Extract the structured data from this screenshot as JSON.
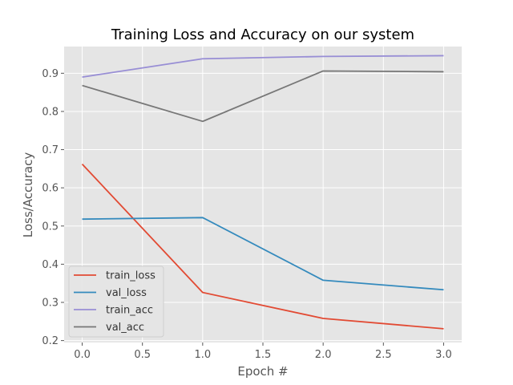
{
  "chart_data": {
    "type": "line",
    "title": "Training Loss and Accuracy on our system",
    "xlabel": "Epoch #",
    "ylabel": "Loss/Accuracy",
    "x": [
      0,
      1,
      2,
      3
    ],
    "xlim": [
      -0.15,
      3.15
    ],
    "ylim": [
      0.195,
      0.97
    ],
    "xticks": [
      0.0,
      0.5,
      1.0,
      1.5,
      2.0,
      2.5,
      3.0
    ],
    "xtick_labels": [
      "0.0",
      "0.5",
      "1.0",
      "1.5",
      "2.0",
      "2.5",
      "3.0"
    ],
    "yticks": [
      0.2,
      0.3,
      0.4,
      0.5,
      0.6,
      0.7,
      0.8,
      0.9
    ],
    "ytick_labels": [
      "0.2",
      "0.3",
      "0.4",
      "0.5",
      "0.6",
      "0.7",
      "0.8",
      "0.9"
    ],
    "grid": true,
    "legend_position": "lower-left",
    "series": [
      {
        "name": "train_loss",
        "color": "#E24A33",
        "values": [
          0.662,
          0.326,
          0.258,
          0.231
        ]
      },
      {
        "name": "val_loss",
        "color": "#348ABD",
        "values": [
          0.518,
          0.522,
          0.358,
          0.333
        ]
      },
      {
        "name": "train_acc",
        "color": "#988ED5",
        "values": [
          0.89,
          0.938,
          0.944,
          0.946
        ]
      },
      {
        "name": "val_acc",
        "color": "#777777",
        "values": [
          0.868,
          0.774,
          0.906,
          0.904
        ]
      }
    ]
  }
}
